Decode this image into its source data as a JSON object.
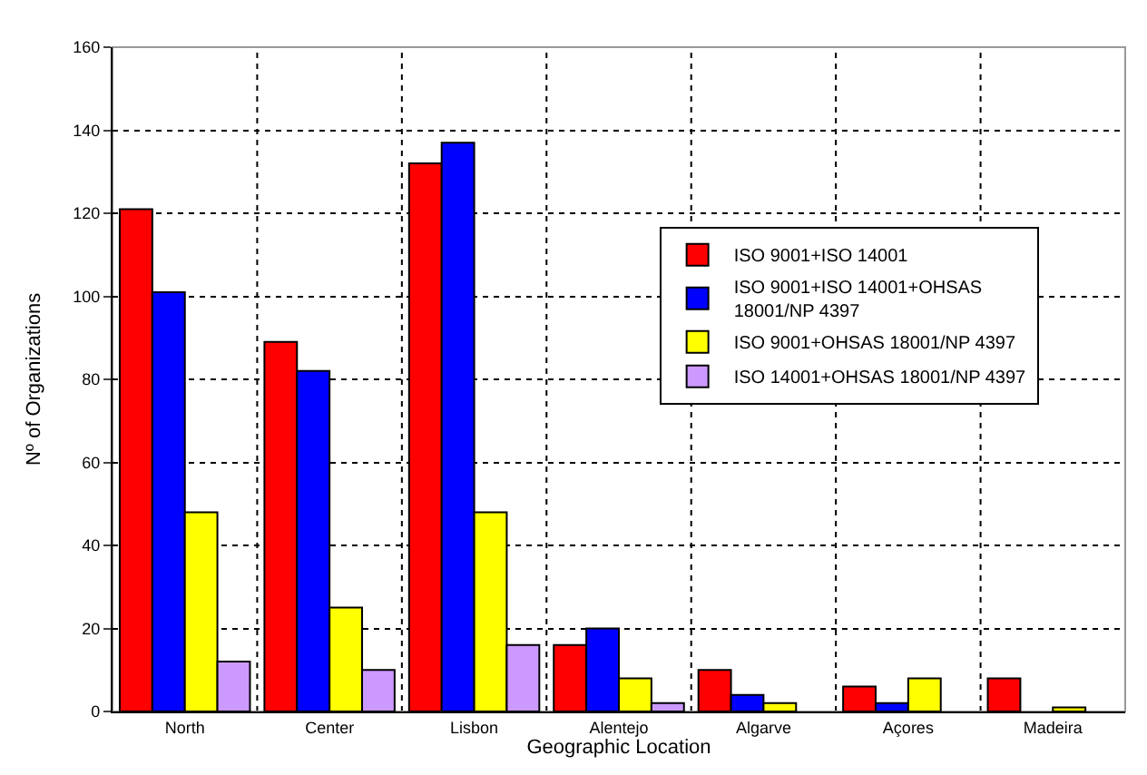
{
  "chart_data": {
    "type": "bar",
    "xlabel": "Geographic Location",
    "ylabel": "Nº of Organizations",
    "categories": [
      "North",
      "Center",
      "Lisbon",
      "Alentejo",
      "Algarve",
      "Açores",
      "Madeira"
    ],
    "series": [
      {
        "name": "ISO 9001+ISO 14001",
        "color": "#ff0000",
        "values": [
          121,
          89,
          132,
          16,
          10,
          6,
          8
        ]
      },
      {
        "name": "ISO 9001+ISO 14001+OHSAS 18001/NP 4397",
        "color": "#0000ff",
        "values": [
          101,
          82,
          137,
          20,
          4,
          2,
          0
        ]
      },
      {
        "name": "ISO 9001+OHSAS 18001/NP 4397",
        "color": "#ffff00",
        "values": [
          48,
          25,
          48,
          8,
          2,
          8,
          1
        ]
      },
      {
        "name": "ISO 14001+OHSAS 18001/NP 4397",
        "color": "#cc99ff",
        "values": [
          12,
          10,
          16,
          2,
          0,
          0,
          0
        ]
      }
    ],
    "ylim": [
      0,
      160
    ],
    "yticks": [
      0,
      20,
      40,
      60,
      80,
      100,
      120,
      140,
      160
    ],
    "grid": true,
    "legend": "right"
  }
}
